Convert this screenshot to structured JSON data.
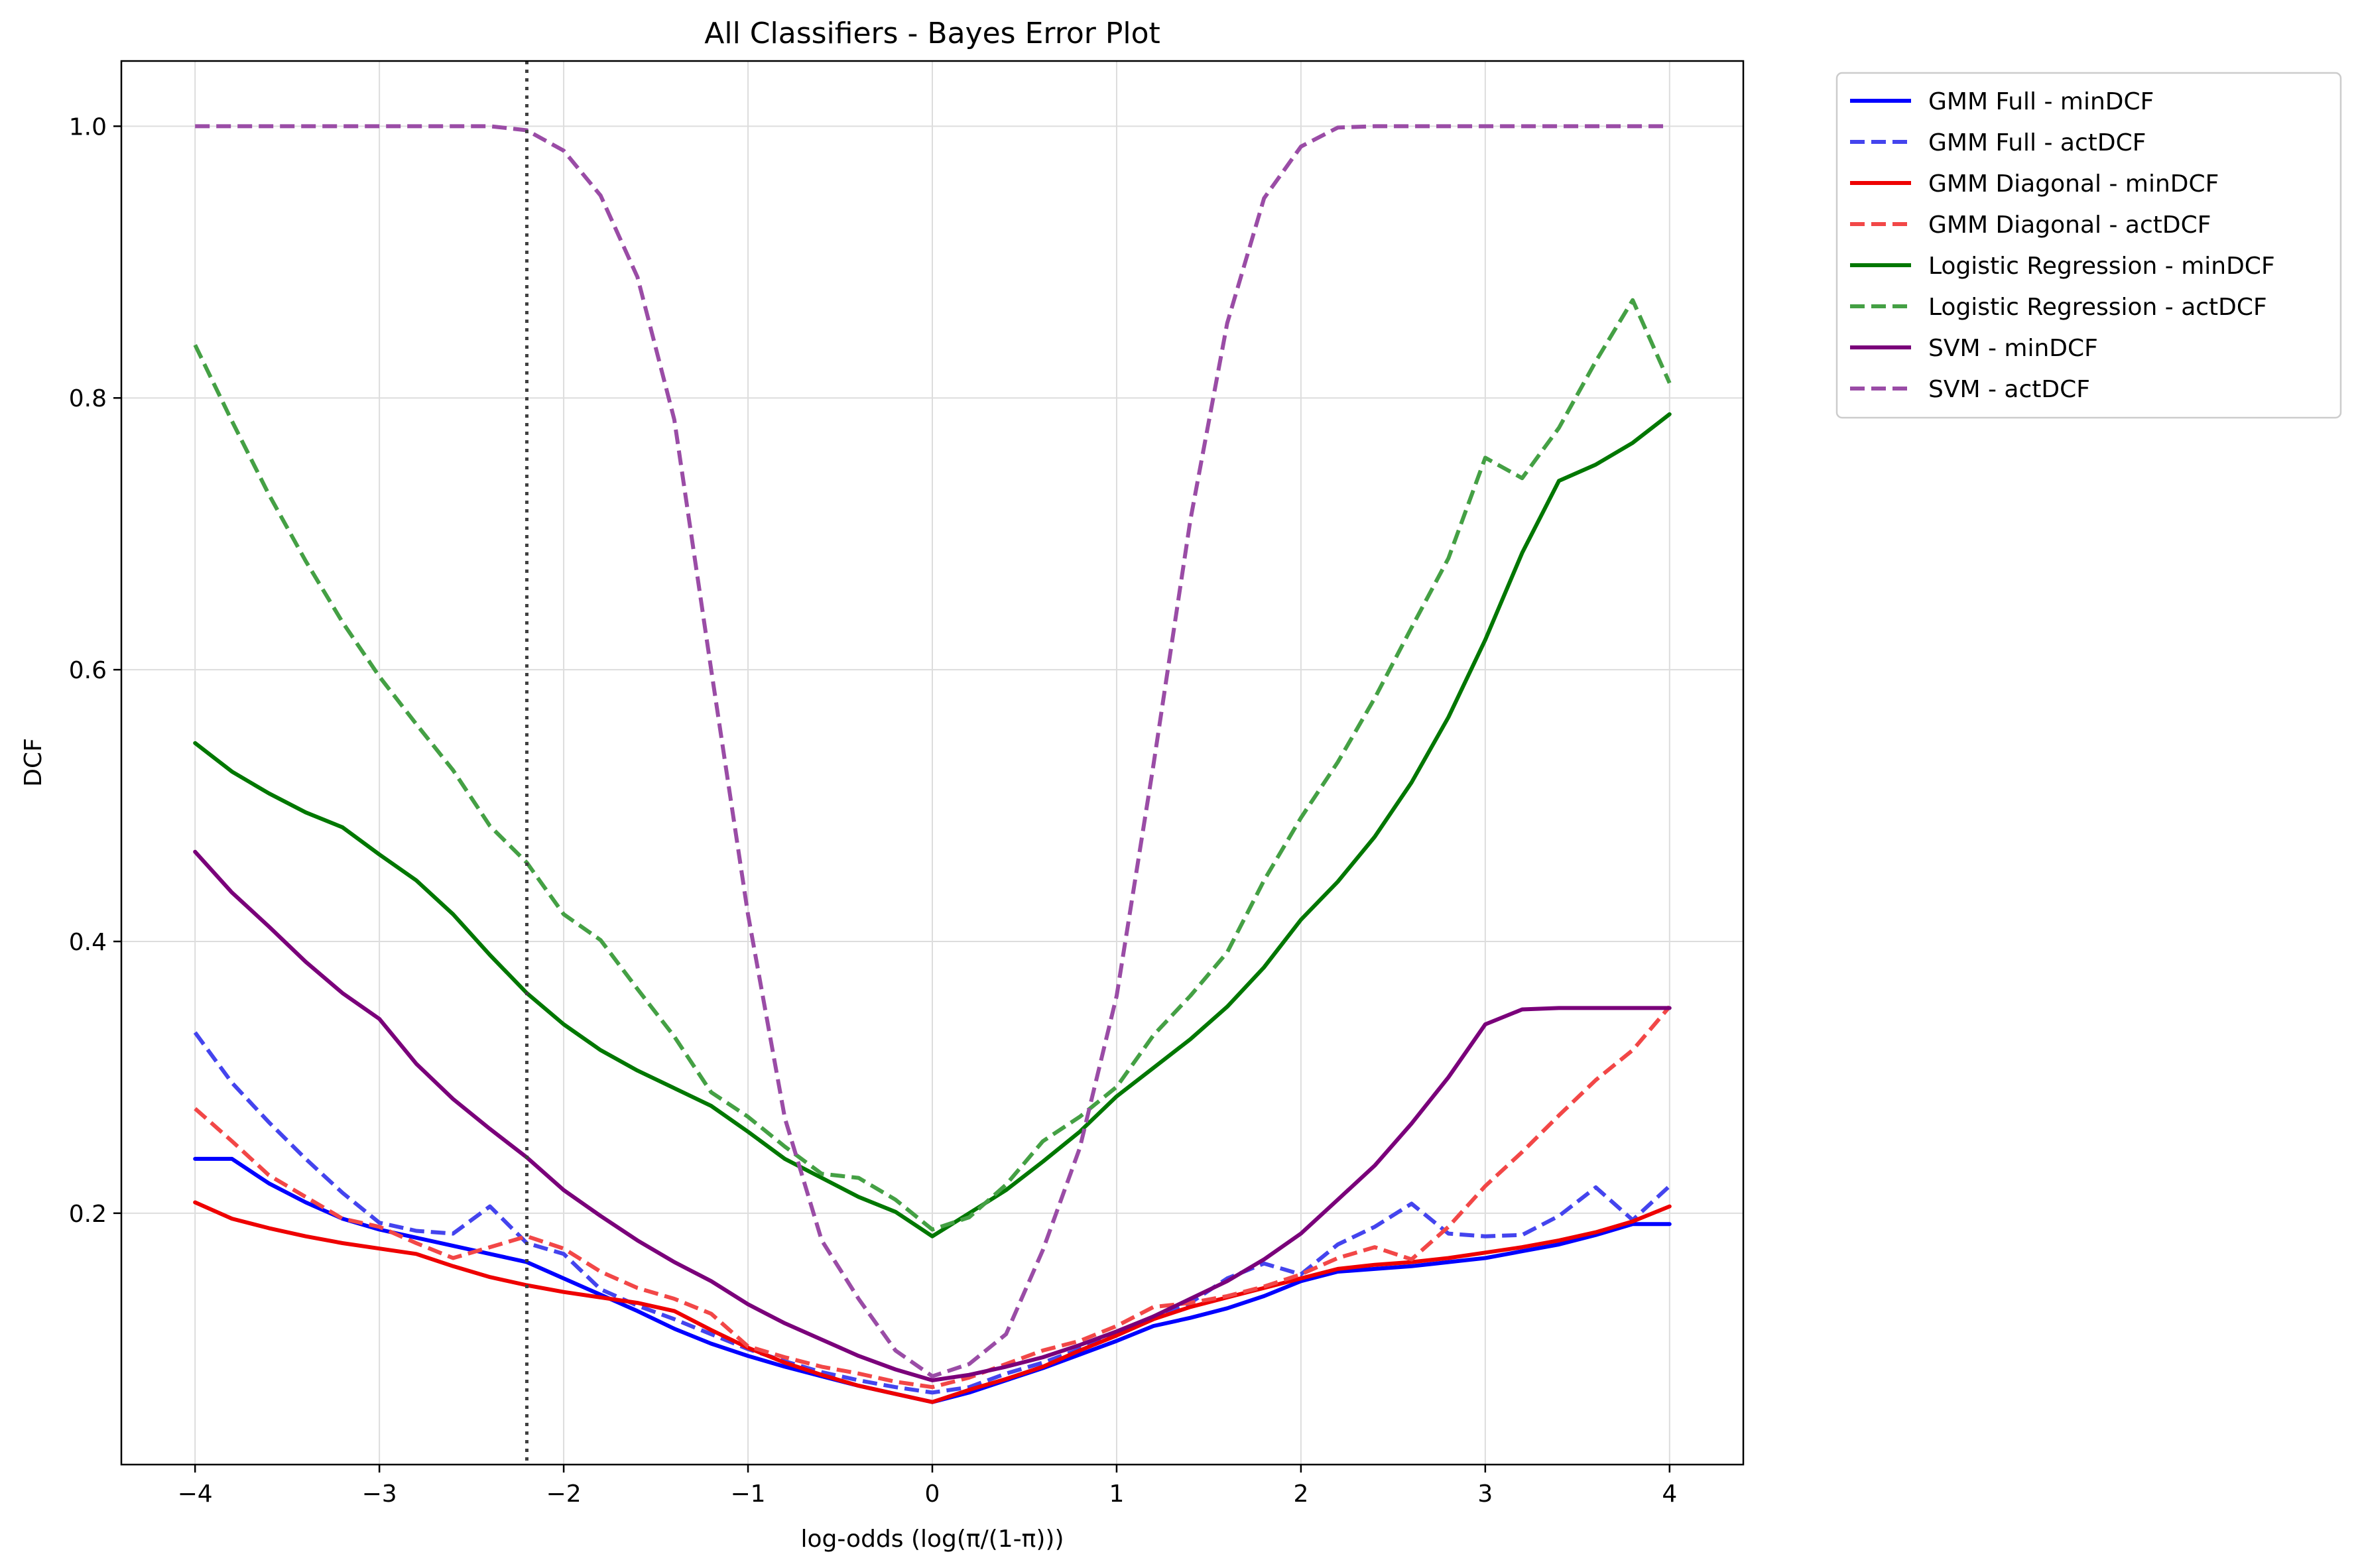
{
  "chart_data": {
    "type": "line",
    "title": "All Classifiers - Bayes Error Plot",
    "xlabel": "log-odds (log(π/(1-π)))",
    "ylabel": "DCF",
    "xlim": [
      -4.4,
      4.4
    ],
    "ylim": [
      0.015,
      1.048
    ],
    "xticks": [
      -4,
      -3,
      -2,
      -1,
      0,
      1,
      2,
      3,
      4
    ],
    "xtick_labels": [
      "−4",
      "−3",
      "−2",
      "−1",
      "0",
      "1",
      "2",
      "3",
      "4"
    ],
    "yticks": [
      0.2,
      0.4,
      0.6,
      0.8,
      1.0
    ],
    "ytick_labels": [
      "0.2",
      "0.4",
      "0.6",
      "0.8",
      "1.0"
    ],
    "grid": true,
    "legend_position": "outside-top-right",
    "vline": {
      "x": -2.2,
      "style": "dotted",
      "color": "#404040"
    },
    "x": [
      -4.0,
      -3.8,
      -3.6,
      -3.4,
      -3.2,
      -3.0,
      -2.8,
      -2.6,
      -2.4,
      -2.2,
      -2.0,
      -1.8,
      -1.6,
      -1.4,
      -1.2,
      -1.0,
      -0.8,
      -0.6,
      -0.4,
      -0.2,
      0.0,
      0.2,
      0.4,
      0.6,
      0.8,
      1.0,
      1.2,
      1.4,
      1.6,
      1.8,
      2.0,
      2.2,
      2.4,
      2.6,
      2.8,
      3.0,
      3.2,
      3.4,
      3.6,
      3.8,
      4.0
    ],
    "series": [
      {
        "name": "GMM Full - minDCF",
        "color": "#0000ff",
        "dash": "solid",
        "opacity": 1,
        "values": [
          0.24,
          0.24,
          0.222,
          0.208,
          0.196,
          0.188,
          0.182,
          0.176,
          0.17,
          0.164,
          0.152,
          0.14,
          0.128,
          0.115,
          0.104,
          0.095,
          0.087,
          0.08,
          0.073,
          0.067,
          0.061,
          0.068,
          0.077,
          0.086,
          0.096,
          0.106,
          0.117,
          0.123,
          0.13,
          0.139,
          0.15,
          0.157,
          0.159,
          0.161,
          0.164,
          0.167,
          0.172,
          0.177,
          0.184,
          0.192,
          0.192
        ]
      },
      {
        "name": "GMM Full - actDCF",
        "color": "#4444ee",
        "dash": "dashed",
        "opacity": 1,
        "values": [
          0.333,
          0.296,
          0.267,
          0.24,
          0.215,
          0.193,
          0.187,
          0.185,
          0.205,
          0.178,
          0.17,
          0.144,
          0.132,
          0.122,
          0.111,
          0.1,
          0.091,
          0.083,
          0.077,
          0.072,
          0.068,
          0.072,
          0.082,
          0.09,
          0.1,
          0.112,
          0.124,
          0.134,
          0.152,
          0.163,
          0.155,
          0.177,
          0.19,
          0.207,
          0.185,
          0.183,
          0.184,
          0.198,
          0.219,
          0.195,
          0.22
        ]
      },
      {
        "name": "GMM Diagonal - minDCF",
        "color": "#ee0000",
        "dash": "solid",
        "opacity": 1,
        "values": [
          0.208,
          0.196,
          0.189,
          0.183,
          0.178,
          0.174,
          0.17,
          0.161,
          0.153,
          0.147,
          0.142,
          0.138,
          0.134,
          0.128,
          0.114,
          0.101,
          0.09,
          0.081,
          0.073,
          0.067,
          0.061,
          0.07,
          0.078,
          0.087,
          0.099,
          0.11,
          0.122,
          0.131,
          0.138,
          0.145,
          0.152,
          0.159,
          0.162,
          0.164,
          0.167,
          0.171,
          0.175,
          0.18,
          0.186,
          0.194,
          0.205
        ]
      },
      {
        "name": "GMM Diagonal - actDCF",
        "color": "#f24747",
        "dash": "dashed",
        "opacity": 1,
        "values": [
          0.277,
          0.253,
          0.228,
          0.212,
          0.196,
          0.19,
          0.178,
          0.167,
          0.175,
          0.183,
          0.174,
          0.157,
          0.145,
          0.137,
          0.126,
          0.102,
          0.094,
          0.087,
          0.082,
          0.076,
          0.072,
          0.079,
          0.089,
          0.099,
          0.106,
          0.117,
          0.131,
          0.134,
          0.139,
          0.146,
          0.155,
          0.167,
          0.175,
          0.166,
          0.19,
          0.22,
          0.245,
          0.272,
          0.298,
          0.32,
          0.352
        ]
      },
      {
        "name": "Logistic Regression - minDCF",
        "color": "#007700",
        "dash": "solid",
        "opacity": 1,
        "values": [
          0.546,
          0.525,
          0.509,
          0.495,
          0.484,
          0.464,
          0.445,
          0.42,
          0.39,
          0.362,
          0.339,
          0.32,
          0.305,
          0.292,
          0.279,
          0.26,
          0.24,
          0.226,
          0.212,
          0.201,
          0.183,
          0.2,
          0.217,
          0.238,
          0.26,
          0.286,
          0.307,
          0.328,
          0.352,
          0.381,
          0.416,
          0.444,
          0.477,
          0.517,
          0.565,
          0.622,
          0.686,
          0.739,
          0.751,
          0.767,
          0.788
        ]
      },
      {
        "name": "Logistic Regression - actDCF",
        "color": "#44a044",
        "dash": "dashed",
        "opacity": 1,
        "values": [
          0.839,
          0.783,
          0.729,
          0.68,
          0.635,
          0.595,
          0.56,
          0.526,
          0.485,
          0.458,
          0.42,
          0.401,
          0.365,
          0.33,
          0.289,
          0.271,
          0.249,
          0.229,
          0.226,
          0.21,
          0.188,
          0.197,
          0.221,
          0.253,
          0.271,
          0.293,
          0.331,
          0.36,
          0.392,
          0.445,
          0.491,
          0.532,
          0.579,
          0.631,
          0.682,
          0.756,
          0.741,
          0.778,
          0.827,
          0.872,
          0.811
        ]
      },
      {
        "name": "SVM - minDCF",
        "color": "#7a007a",
        "dash": "solid",
        "opacity": 1,
        "values": [
          0.466,
          0.436,
          0.411,
          0.385,
          0.362,
          0.343,
          0.31,
          0.284,
          0.262,
          0.241,
          0.217,
          0.198,
          0.18,
          0.164,
          0.15,
          0.133,
          0.119,
          0.107,
          0.095,
          0.085,
          0.077,
          0.081,
          0.087,
          0.094,
          0.103,
          0.113,
          0.124,
          0.137,
          0.15,
          0.166,
          0.185,
          0.21,
          0.235,
          0.266,
          0.3,
          0.339,
          0.35,
          0.351,
          0.351,
          0.351,
          0.351
        ]
      },
      {
        "name": "SVM - actDCF",
        "color": "#9a4ca6",
        "dash": "dashed",
        "opacity": 1,
        "values": [
          1.0,
          1.0,
          1.0,
          1.0,
          1.0,
          1.0,
          1.0,
          1.0,
          1.0,
          0.997,
          0.982,
          0.949,
          0.889,
          0.784,
          0.6,
          0.42,
          0.27,
          0.18,
          0.137,
          0.099,
          0.08,
          0.089,
          0.111,
          0.173,
          0.248,
          0.36,
          0.53,
          0.71,
          0.855,
          0.947,
          0.985,
          0.999,
          1.0,
          1.0,
          1.0,
          1.0,
          1.0,
          1.0,
          1.0,
          1.0,
          1.0
        ]
      }
    ]
  }
}
